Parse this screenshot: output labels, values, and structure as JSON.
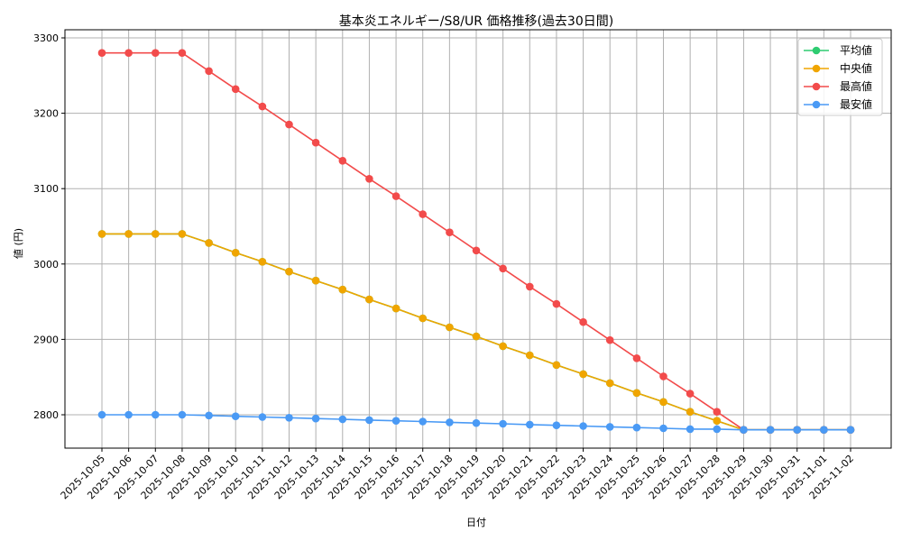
{
  "chart_data": {
    "type": "line",
    "title": "基本炎エネルギー/S8/UR 価格推移(過去30日間)",
    "xlabel": "日付",
    "ylabel": "値 (円)",
    "ylim": [
      2753,
      3302
    ],
    "yticks": [
      2800,
      2900,
      3000,
      3100,
      3200,
      3300
    ],
    "grid": true,
    "legend_position": "upper right",
    "x": [
      "2025-10-05",
      "2025-10-06",
      "2025-10-07",
      "2025-10-08",
      "2025-10-09",
      "2025-10-10",
      "2025-10-11",
      "2025-10-12",
      "2025-10-13",
      "2025-10-14",
      "2025-10-15",
      "2025-10-16",
      "2025-10-17",
      "2025-10-18",
      "2025-10-19",
      "2025-10-20",
      "2025-10-21",
      "2025-10-22",
      "2025-10-23",
      "2025-10-24",
      "2025-10-25",
      "2025-10-26",
      "2025-10-27",
      "2025-10-28",
      "2025-10-29",
      "2025-10-30",
      "2025-10-31",
      "2025-11-01",
      "2025-11-02"
    ],
    "series": [
      {
        "name": "平均値",
        "color": "#2ecc71",
        "values": [
          3040,
          3040,
          3040,
          3040,
          3028,
          3015,
          3003,
          2990,
          2978,
          2966,
          2953,
          2941,
          2928,
          2916,
          2904,
          2891,
          2879,
          2866,
          2854,
          2842,
          2829,
          2817,
          2804,
          2792,
          2780,
          2780,
          2780,
          2780,
          2780
        ]
      },
      {
        "name": "中央値",
        "color": "#f0a500",
        "values": [
          3040,
          3040,
          3040,
          3040,
          3028,
          3015,
          3003,
          2990,
          2978,
          2966,
          2953,
          2941,
          2928,
          2916,
          2904,
          2891,
          2879,
          2866,
          2854,
          2842,
          2829,
          2817,
          2804,
          2792,
          2780,
          2780,
          2780,
          2780,
          2780
        ]
      },
      {
        "name": "最高値",
        "color": "#f24b4b",
        "values": [
          3280,
          3280,
          3280,
          3280,
          3256,
          3232,
          3209,
          3185,
          3161,
          3137,
          3113,
          3090,
          3066,
          3042,
          3018,
          2994,
          2970,
          2947,
          2923,
          2899,
          2875,
          2851,
          2828,
          2804,
          2780,
          2780,
          2780,
          2780,
          2780
        ]
      },
      {
        "name": "最安値",
        "color": "#4a9af5",
        "values": [
          2800,
          2800,
          2800,
          2800,
          2799,
          2798,
          2797,
          2796,
          2795,
          2794,
          2793,
          2792,
          2791,
          2790,
          2789,
          2788,
          2787,
          2786,
          2785,
          2784,
          2783,
          2782,
          2781,
          2781,
          2780,
          2780,
          2780,
          2780,
          2780
        ]
      }
    ]
  }
}
